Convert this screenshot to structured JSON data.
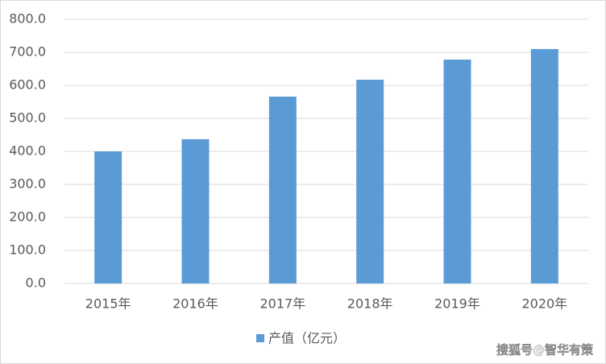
{
  "chart_data": {
    "type": "bar",
    "categories": [
      "2015年",
      "2016年",
      "2017年",
      "2018年",
      "2019年",
      "2020年"
    ],
    "series": [
      {
        "name": "产值（亿元）",
        "color": "#5b9bd5",
        "values": [
          400,
          437,
          566,
          617,
          678,
          710
        ]
      }
    ],
    "ylim": [
      0,
      800
    ],
    "yticks": [
      {
        "value": 0,
        "label": "0.0"
      },
      {
        "value": 100,
        "label": "100.0"
      },
      {
        "value": 200,
        "label": "200.0"
      },
      {
        "value": 300,
        "label": "300.0"
      },
      {
        "value": 400,
        "label": "400.0"
      },
      {
        "value": 500,
        "label": "500.0"
      },
      {
        "value": 600,
        "label": "600.0"
      },
      {
        "value": 700,
        "label": "700.0"
      },
      {
        "value": 800,
        "label": "800.0"
      }
    ],
    "grid": true,
    "legend": "bottom",
    "watermark": "搜狐号@智华有策"
  }
}
